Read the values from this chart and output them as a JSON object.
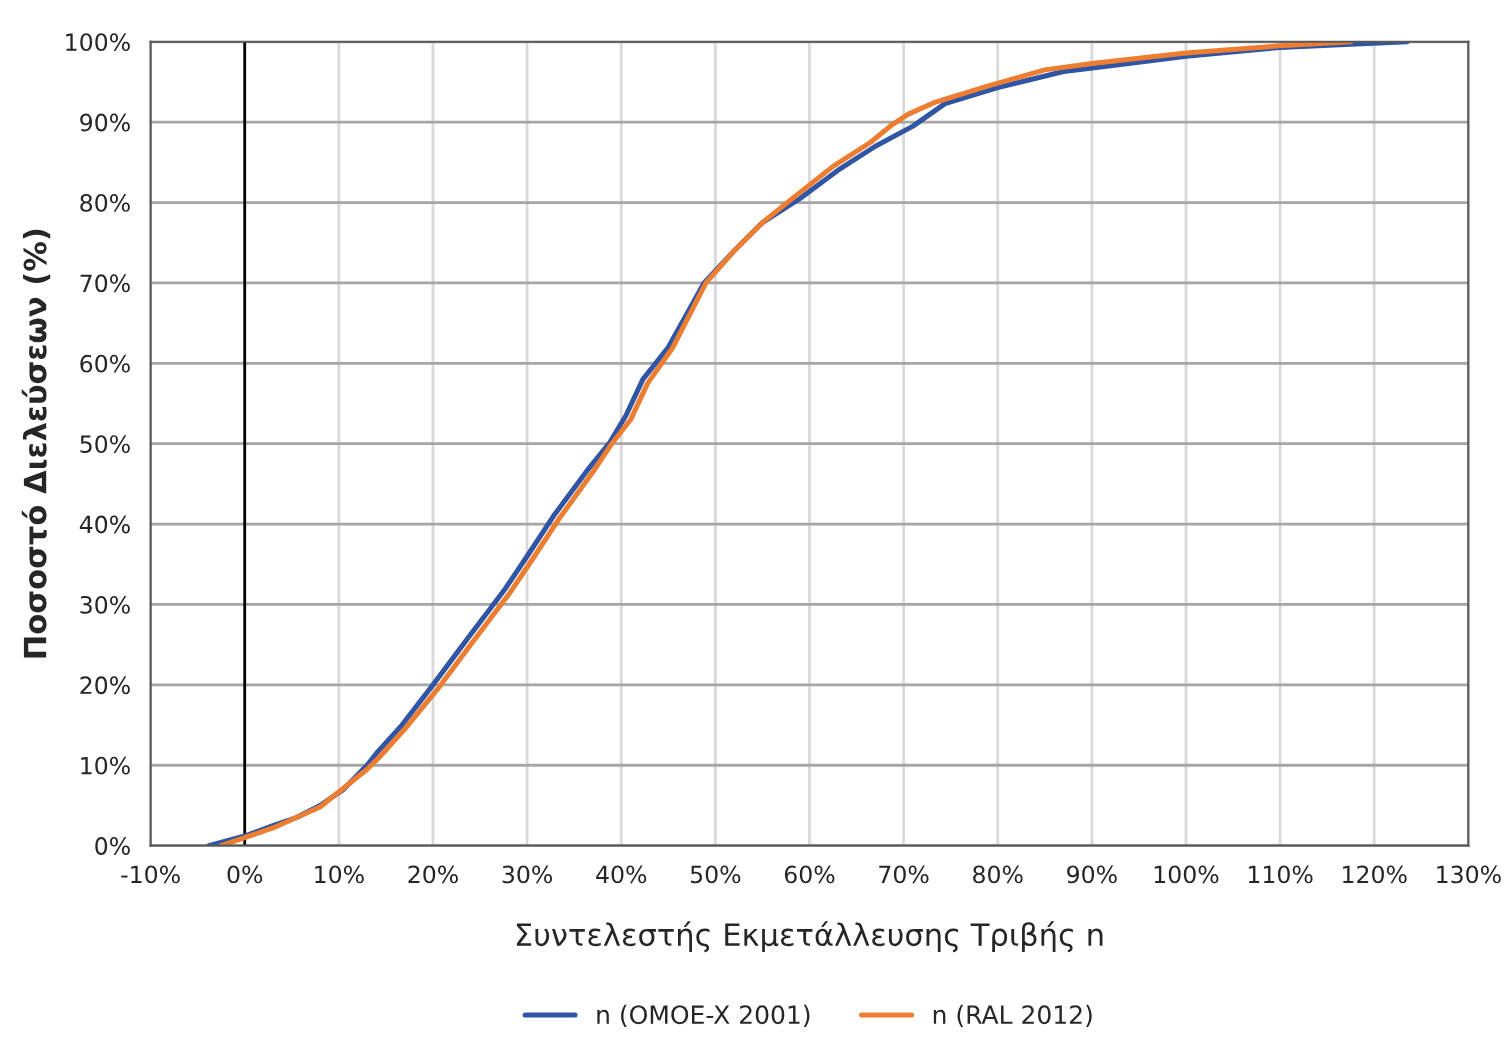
{
  "chart_data": {
    "type": "line",
    "xlabel": "Συντελεστής Εκμετάλλευσης Τριβής n",
    "ylabel": "Ποσοστό Διελεύσεων (%)",
    "xlim": [
      -10,
      130
    ],
    "xticks": [
      {
        "value": -10,
        "label": "-10%"
      },
      {
        "value": 0,
        "label": "0%"
      },
      {
        "value": 10,
        "label": "10%"
      },
      {
        "value": 20,
        "label": "20%"
      },
      {
        "value": 30,
        "label": "30%"
      },
      {
        "value": 40,
        "label": "40%"
      },
      {
        "value": 50,
        "label": "50%"
      },
      {
        "value": 60,
        "label": "60%"
      },
      {
        "value": 70,
        "label": "70%"
      },
      {
        "value": 80,
        "label": "80%"
      },
      {
        "value": 90,
        "label": "90%"
      },
      {
        "value": 100,
        "label": "100%"
      },
      {
        "value": 110,
        "label": "110%"
      },
      {
        "value": 120,
        "label": "120%"
      },
      {
        "value": 130,
        "label": "130%"
      }
    ],
    "ylim": [
      0,
      100
    ],
    "yticks": [
      {
        "value": 0,
        "label": "0%"
      },
      {
        "value": 10,
        "label": "10%"
      },
      {
        "value": 20,
        "label": "20%"
      },
      {
        "value": 30,
        "label": "30%"
      },
      {
        "value": 40,
        "label": "40%"
      },
      {
        "value": 50,
        "label": "50%"
      },
      {
        "value": 60,
        "label": "60%"
      },
      {
        "value": 70,
        "label": "70%"
      },
      {
        "value": 80,
        "label": "80%"
      },
      {
        "value": 90,
        "label": "90%"
      },
      {
        "value": 100,
        "label": "100%"
      }
    ],
    "grid": true,
    "legend": "bottom",
    "marker": "none",
    "line_style": "solid",
    "ref_lines": [
      {
        "axis": "x",
        "value": 0,
        "color": "#000000"
      }
    ],
    "series": [
      {
        "name": "n (OMOE-X 2001)",
        "color": "#2f55a4",
        "x": [
          -3.8,
          0,
          3,
          5.5,
          8,
          10.5,
          13,
          14,
          16.7,
          20,
          23.5,
          27.7,
          30,
          32.8,
          36.6,
          38.7,
          40.5,
          42.3,
          45,
          48.8,
          52,
          55,
          59,
          63,
          67,
          71,
          74.4,
          80,
          87,
          92,
          100,
          110,
          117.5,
          123.5
        ],
        "values": [
          0,
          1.2,
          2.5,
          3.5,
          5,
          7,
          10,
          11.5,
          15,
          20,
          25.5,
          32,
          36,
          41,
          47,
          50,
          53.5,
          58,
          62,
          70,
          74,
          77.5,
          80.5,
          84,
          87,
          89.5,
          92.3,
          94.3,
          96.3,
          97,
          98.2,
          99.3,
          99.7,
          100
        ]
      },
      {
        "name": "n (RAL 2012)",
        "color": "#ed7d31",
        "x": [
          -2.5,
          0,
          3,
          8,
          13,
          14.3,
          17,
          20.5,
          24,
          28.2,
          30.5,
          33.3,
          37,
          39,
          41,
          42.8,
          45.5,
          49,
          52,
          55,
          58.5,
          62.5,
          66.5,
          68.8,
          70.5,
          73.4,
          79,
          85,
          90,
          100,
          110,
          117.5
        ],
        "values": [
          0,
          1,
          2.2,
          4.8,
          9.5,
          11,
          14.5,
          19.5,
          25,
          31.5,
          35.5,
          40.5,
          46.5,
          50,
          53,
          57.5,
          62,
          70,
          74,
          77.5,
          80.8,
          84.5,
          87.5,
          89.7,
          91,
          92.5,
          94.5,
          96.5,
          97.3,
          98.6,
          99.5,
          100
        ]
      }
    ]
  }
}
